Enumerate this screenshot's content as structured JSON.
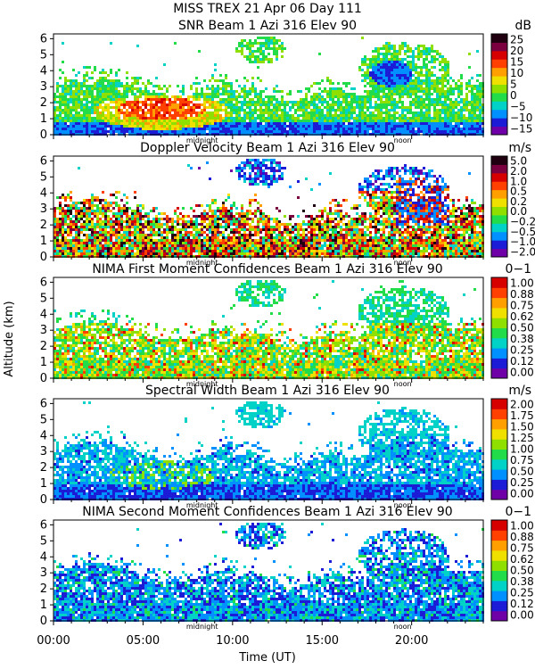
{
  "header": {
    "line1": "MISS TREX   21 Apr 06 Day 111"
  },
  "y_axis_label": "Altitude (km)",
  "x_axis_label": "Time (UT)",
  "x_ticks": [
    "00:00",
    "05:00",
    "10:00",
    "15:00",
    "20:00"
  ],
  "markers": {
    "midnight": "midnight",
    "noon": "noon"
  },
  "chart_data": [
    {
      "type": "heatmap",
      "title": "SNR Beam 1 Azi 316 Elev 90",
      "unit": "dB",
      "xlim": [
        0,
        24
      ],
      "ylim": [
        0,
        6.3
      ],
      "y_ticks": [
        "0",
        "1",
        "2",
        "3",
        "4",
        "5",
        "6"
      ],
      "colorbar_ticks": [
        "25",
        "20",
        "15",
        "10",
        "5",
        "0",
        "−5",
        "−10",
        "−15"
      ],
      "colormap": [
        "#6f00a8",
        "#1c1cd6",
        "#0090ff",
        "#00d2c8",
        "#22dc4a",
        "#8fe000",
        "#f0e000",
        "#ffa000",
        "#ff4000",
        "#d60000",
        "#7a0040",
        "#200010"
      ]
    },
    {
      "type": "heatmap",
      "title": "Doppler Velocity Beam 1 Azi 316 Elev 90",
      "unit": "m/s",
      "xlim": [
        0,
        24
      ],
      "ylim": [
        0,
        6.3
      ],
      "y_ticks": [
        "0",
        "1",
        "2",
        "3",
        "4",
        "5",
        "6"
      ],
      "colorbar_ticks": [
        "5.0",
        "2.0",
        "1.0",
        "0.5",
        "0.2",
        "0.0",
        "−0.2",
        "−0.5",
        "−1.0",
        "−2.0"
      ],
      "colormap": [
        "#6f00a8",
        "#1c1cd6",
        "#0090ff",
        "#00d2c8",
        "#22dc4a",
        "#8fe000",
        "#f0e000",
        "#ffa000",
        "#ff4000",
        "#d60000",
        "#7a0040",
        "#200010"
      ]
    },
    {
      "type": "heatmap",
      "title": "NIMA First Moment Confidences Beam 1 Azi 316 Elev 90",
      "unit": "0−1",
      "xlim": [
        0,
        24
      ],
      "ylim": [
        0,
        6.3
      ],
      "y_ticks": [
        "0",
        "1",
        "2",
        "3",
        "4",
        "5",
        "6"
      ],
      "colorbar_ticks": [
        "1.00",
        "0.88",
        "0.75",
        "0.62",
        "0.50",
        "0.38",
        "0.25",
        "0.12",
        "0.00"
      ],
      "colormap": [
        "#6f00a8",
        "#1c1cd6",
        "#0090ff",
        "#00d2c8",
        "#22dc4a",
        "#8fe000",
        "#f0e000",
        "#ffa000",
        "#ff4000",
        "#d60000"
      ]
    },
    {
      "type": "heatmap",
      "title": "Spectral Width Beam 1 Azi 316 Elev 90",
      "unit": "m/s",
      "xlim": [
        0,
        24
      ],
      "ylim": [
        0,
        6.3
      ],
      "y_ticks": [
        "0",
        "1",
        "2",
        "3",
        "4",
        "5",
        "6"
      ],
      "colorbar_ticks": [
        "2.00",
        "1.75",
        "1.50",
        "1.25",
        "1.00",
        "0.75",
        "0.50",
        "0.25",
        "0.00"
      ],
      "colormap": [
        "#6f00a8",
        "#1c1cd6",
        "#0090ff",
        "#00d2c8",
        "#22dc4a",
        "#8fe000",
        "#f0e000",
        "#ffa000",
        "#ff4000",
        "#d60000"
      ]
    },
    {
      "type": "heatmap",
      "title": "NIMA Second Moment Confidences Beam 1 Azi 316 Elev 90",
      "unit": "0−1",
      "xlim": [
        0,
        24
      ],
      "ylim": [
        0,
        6.3
      ],
      "y_ticks": [
        "0",
        "1",
        "2",
        "3",
        "4",
        "5",
        "6"
      ],
      "colorbar_ticks": [
        "1.00",
        "0.88",
        "0.75",
        "0.62",
        "0.50",
        "0.38",
        "0.25",
        "0.12",
        "0.00"
      ],
      "colormap": [
        "#6f00a8",
        "#1c1cd6",
        "#0090ff",
        "#00d2c8",
        "#22dc4a",
        "#8fe000",
        "#f0e000",
        "#ffa000",
        "#ff4000",
        "#d60000"
      ]
    }
  ]
}
